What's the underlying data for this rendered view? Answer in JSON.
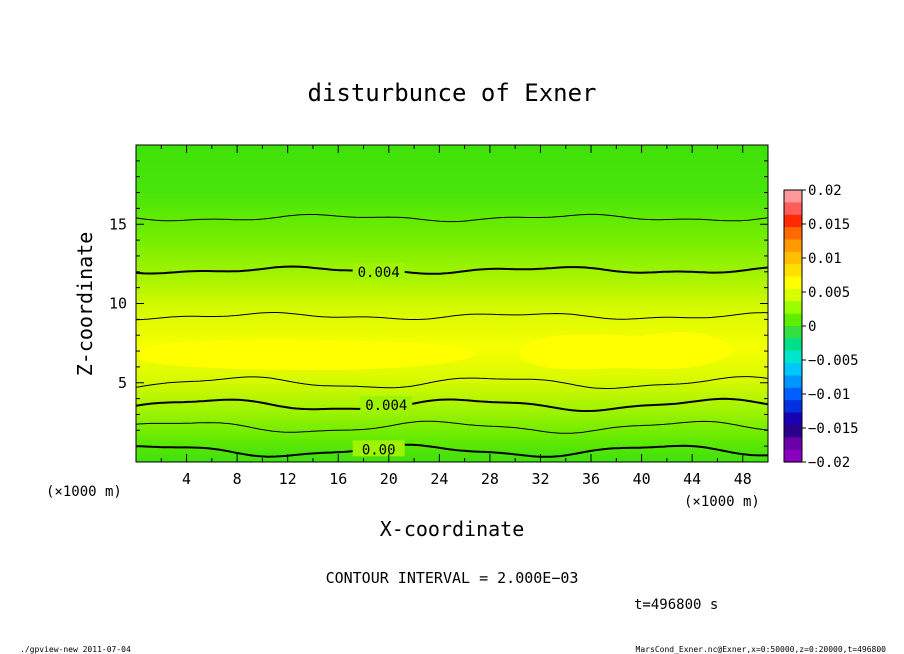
{
  "chart_data": {
    "type": "contour",
    "title": "disturbunce of Exner",
    "xlabel": "X-coordinate",
    "ylabel": "Z-coordinate",
    "x_unit_label": "(×1000 m)",
    "y_unit_label": "(×1000 m)",
    "xlim": [
      0,
      50
    ],
    "ylim": [
      0,
      20
    ],
    "x_ticks": [
      4,
      8,
      12,
      16,
      20,
      24,
      28,
      32,
      36,
      40,
      44,
      48
    ],
    "y_ticks": [
      5,
      10,
      15
    ],
    "colorbar": {
      "ticks": [
        "0.02",
        "0.015",
        "0.01",
        "0.005",
        "0",
        "−0.005",
        "−0.01",
        "−0.015",
        "−0.02"
      ],
      "range": [
        -0.02,
        0.02
      ],
      "colors": [
        "#ff9999",
        "#ff5c5c",
        "#ff2a00",
        "#ff6a00",
        "#ff9a00",
        "#ffbf00",
        "#ffe000",
        "#ffff00",
        "#d6ff00",
        "#9cff00",
        "#5cf000",
        "#33e040",
        "#00e08a",
        "#00e6cc",
        "#00c8ff",
        "#0096ff",
        "#0060ff",
        "#0030e0",
        "#1a00b0",
        "#2a008a",
        "#6a00a8",
        "#8a00c0"
      ]
    },
    "contour_labels": [
      {
        "text": "0.004",
        "x": 19.2,
        "z": 12.0
      },
      {
        "text": "0.004",
        "x": 19.8,
        "z": 3.6
      },
      {
        "text": "0.00",
        "x": 19.2,
        "z": 0.8
      }
    ],
    "contour_lines": [
      {
        "level": "thin",
        "z": 15.4
      },
      {
        "level": "0.004",
        "z": 12.1
      },
      {
        "level": "thin",
        "z": 9.2
      },
      {
        "level": "thin",
        "z": 5.0
      },
      {
        "level": "0.004",
        "z": 3.6
      },
      {
        "level": "thin",
        "z": 2.2
      },
      {
        "level": "0.00",
        "z": 0.7
      }
    ]
  },
  "annotations": {
    "contour_interval": "CONTOUR INTERVAL = 2.000E−03",
    "time": "t=496800 s",
    "footer_left": "./gpview-new   2011-07-04",
    "footer_right": "MarsCond_Exner.nc@Exner,x=0:50000,z=0:20000,t=496800"
  }
}
